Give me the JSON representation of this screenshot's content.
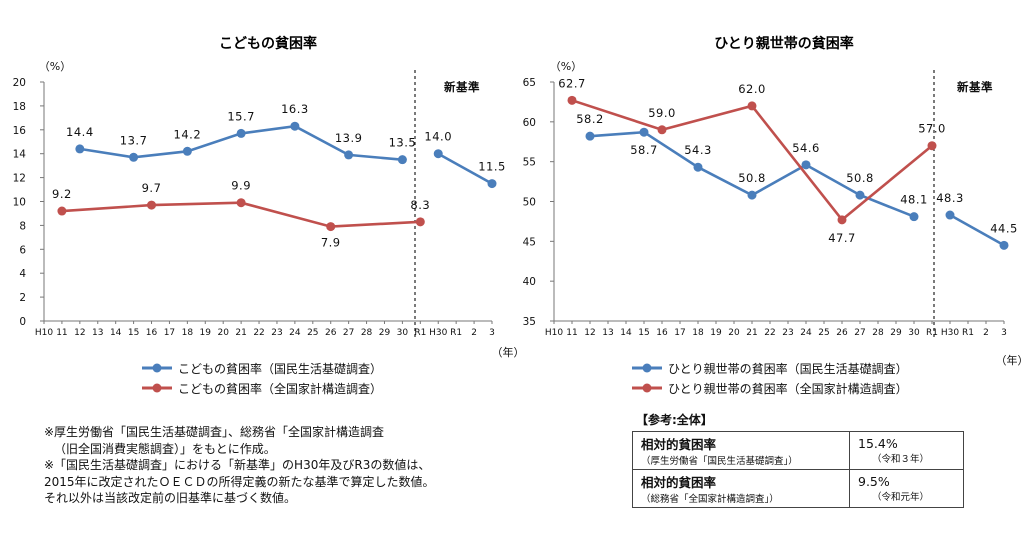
{
  "chart_data": [
    {
      "type": "line",
      "title": "こどもの貧困率",
      "ylabel": "（%）",
      "xlabel": "（年）",
      "ylim": [
        0,
        20
      ],
      "yticks": [
        0,
        2,
        4,
        6,
        8,
        10,
        12,
        14,
        16,
        18,
        20
      ],
      "categories": [
        "H10",
        "11",
        "12",
        "13",
        "14",
        "15",
        "16",
        "17",
        "18",
        "19",
        "20",
        "21",
        "22",
        "23",
        "24",
        "25",
        "26",
        "27",
        "28",
        "29",
        "30",
        "R1",
        "H30",
        "R1",
        "2",
        "3"
      ],
      "divider_after": "R1",
      "divider_label": "新基準",
      "series": [
        {
          "name": "こどもの貧困率（国民生活基礎調査）",
          "color": "#4a7ebb",
          "points": [
            {
              "i": 2,
              "v": 14.4
            },
            {
              "i": 5,
              "v": 13.7
            },
            {
              "i": 8,
              "v": 14.2
            },
            {
              "i": 11,
              "v": 15.7
            },
            {
              "i": 14,
              "v": 16.3
            },
            {
              "i": 17,
              "v": 13.9
            },
            {
              "i": 20,
              "v": 13.5
            }
          ],
          "new_points": [
            {
              "i": 22,
              "v": 14.0
            },
            {
              "i": 25,
              "v": 11.5
            }
          ]
        },
        {
          "name": "こどもの貧困率（全国家計構造調査）",
          "color": "#c0504d",
          "points": [
            {
              "i": 1,
              "v": 9.2
            },
            {
              "i": 6,
              "v": 9.7
            },
            {
              "i": 11,
              "v": 9.9
            },
            {
              "i": 16,
              "v": 7.9
            },
            {
              "i": 21,
              "v": 8.3
            }
          ],
          "new_points": []
        }
      ]
    },
    {
      "type": "line",
      "title": "ひとり親世帯の貧困率",
      "ylabel": "（%）",
      "xlabel": "（年）",
      "ylim": [
        35,
        65
      ],
      "yticks": [
        35,
        40,
        45,
        50,
        55,
        60,
        65
      ],
      "categories": [
        "H10",
        "11",
        "12",
        "13",
        "14",
        "15",
        "16",
        "17",
        "18",
        "19",
        "20",
        "21",
        "22",
        "23",
        "24",
        "25",
        "26",
        "27",
        "28",
        "29",
        "30",
        "R1",
        "H30",
        "R1",
        "2",
        "3"
      ],
      "divider_after": "R1",
      "divider_label": "新基準",
      "series": [
        {
          "name": "ひとり親世帯の貧困率（国民生活基礎調査）",
          "color": "#4a7ebb",
          "points": [
            {
              "i": 2,
              "v": 58.2
            },
            {
              "i": 5,
              "v": 58.7
            },
            {
              "i": 8,
              "v": 54.3
            },
            {
              "i": 11,
              "v": 50.8
            },
            {
              "i": 14,
              "v": 54.6
            },
            {
              "i": 17,
              "v": 50.8
            },
            {
              "i": 20,
              "v": 48.1
            }
          ],
          "new_points": [
            {
              "i": 22,
              "v": 48.3
            },
            {
              "i": 25,
              "v": 44.5
            }
          ]
        },
        {
          "name": "ひとり親世帯の貧困率（全国家計構造調査）",
          "color": "#c0504d",
          "points": [
            {
              "i": 1,
              "v": 62.7
            },
            {
              "i": 6,
              "v": 59.0
            },
            {
              "i": 11,
              "v": 62.0
            },
            {
              "i": 16,
              "v": 47.7
            },
            {
              "i": 21,
              "v": 57.0
            }
          ],
          "new_points": []
        }
      ]
    }
  ],
  "notes": [
    "※厚生労働省「国民生活基礎調査」、総務省「全国家計構造調査",
    "（旧全国消費実態調査）」をもとに作成。",
    "※「国民生活基礎調査」における「新基準」のH30年及びR3の数値は、",
    "2015年に改定されたＯＥＣＤの所得定義の新たな基準で算定した数値。",
    "それ以外は当該改定前の旧基準に基づく数値。"
  ],
  "reference": {
    "heading": "【参考:全体】",
    "rows": [
      {
        "label": "相対的貧困率",
        "source": "（厚生労働省「国民生活基礎調査」）",
        "value": "15.4%",
        "note": "（令和３年）"
      },
      {
        "label": "相対的貧困率",
        "source": "（総務省「全国家計構造調査」）",
        "value": "9.5%",
        "note": "（令和元年）"
      }
    ]
  }
}
